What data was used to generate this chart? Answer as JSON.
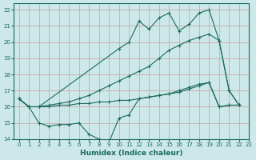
{
  "xlabel": "Humidex (Indice chaleur)",
  "bg_color": "#cce8e8",
  "line_color": "#1a6b5e",
  "grid_color": "#b0d4d4",
  "xlim": [
    -0.5,
    23
  ],
  "ylim": [
    14,
    22.4
  ],
  "yticks": [
    14,
    15,
    16,
    17,
    18,
    19,
    20,
    21,
    22
  ],
  "xticks": [
    0,
    1,
    2,
    3,
    4,
    5,
    6,
    7,
    8,
    9,
    10,
    11,
    12,
    13,
    14,
    15,
    16,
    17,
    18,
    19,
    20,
    21,
    22,
    23
  ],
  "series": [
    {
      "x": [
        0,
        1,
        2,
        10,
        11,
        12,
        13,
        14,
        15,
        16,
        17,
        18,
        19,
        20,
        21,
        22
      ],
      "y": [
        16.5,
        16.0,
        16.0,
        19.6,
        20.0,
        21.3,
        20.8,
        21.5,
        21.8,
        20.7,
        21.1,
        21.8,
        22.0,
        20.1,
        17.0,
        16.1
      ]
    },
    {
      "x": [
        0,
        1,
        2,
        3,
        4,
        5,
        6,
        7,
        8,
        9,
        10,
        11,
        12,
        13,
        14,
        15,
        16,
        17,
        18,
        19,
        20,
        21,
        22
      ],
      "y": [
        16.5,
        16.0,
        16.0,
        16.1,
        16.2,
        16.3,
        16.5,
        16.7,
        17.0,
        17.3,
        17.6,
        17.9,
        18.2,
        18.5,
        19.0,
        19.5,
        19.8,
        20.1,
        20.3,
        20.5,
        20.1,
        17.0,
        16.1
      ]
    },
    {
      "x": [
        0,
        1,
        2,
        3,
        4,
        5,
        6,
        7,
        8,
        9,
        10,
        11,
        12,
        13,
        14,
        15,
        16,
        17,
        18,
        19,
        20,
        21,
        22
      ],
      "y": [
        16.5,
        16.0,
        16.0,
        16.0,
        16.1,
        16.1,
        16.2,
        16.2,
        16.3,
        16.3,
        16.4,
        16.4,
        16.5,
        16.6,
        16.7,
        16.8,
        17.0,
        17.2,
        17.4,
        17.5,
        16.0,
        16.1,
        16.1
      ]
    },
    {
      "x": [
        0,
        1,
        2,
        3,
        4,
        5,
        6,
        7,
        8,
        9,
        10,
        11,
        12,
        13,
        14,
        15,
        16,
        17,
        18,
        19,
        20,
        21,
        22
      ],
      "y": [
        16.5,
        16.0,
        15.0,
        14.8,
        14.9,
        14.9,
        15.0,
        14.3,
        14.0,
        13.8,
        15.3,
        15.5,
        16.5,
        16.6,
        16.7,
        16.8,
        16.9,
        17.1,
        17.3,
        17.5,
        16.0,
        16.1,
        16.1
      ]
    }
  ]
}
